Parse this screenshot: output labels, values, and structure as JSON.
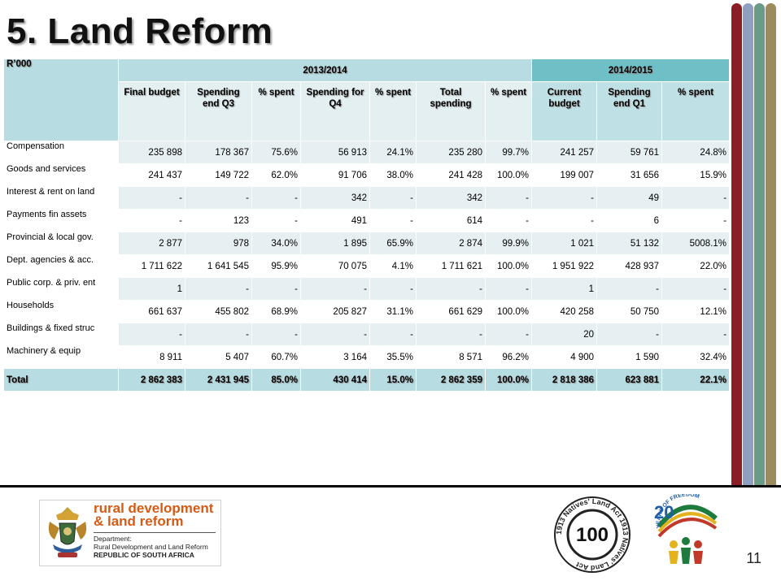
{
  "slide": {
    "title": "5. Land Reform",
    "page_number": "11",
    "accent_bars": [
      "#8b1e24",
      "#8f9fc1",
      "#6a9b86",
      "#9c8b5d"
    ]
  },
  "table": {
    "unit_label": "R’000",
    "year_2013": "2013/2014",
    "year_2014": "2014/2015",
    "columns": [
      "Final budget",
      "Spending end Q3",
      "% spent",
      "Spending for Q4",
      "% spent",
      "Total spending",
      "% spent",
      "Current budget",
      "Spending end Q1",
      "% spent"
    ],
    "rows": [
      {
        "label": "Compensation",
        "values": [
          "235 898",
          "178 367",
          "75.6%",
          "56 913",
          "24.1%",
          "235 280",
          "99.7%",
          "241 257",
          "59 761",
          "24.8%"
        ]
      },
      {
        "label": "Goods and services",
        "values": [
          "241 437",
          "149 722",
          "62.0%",
          "91 706",
          "38.0%",
          "241 428",
          "100.0%",
          "199 007",
          "31 656",
          "15.9%"
        ]
      },
      {
        "label": "Interest & rent on land",
        "values": [
          "-",
          "-",
          "-",
          "342",
          "-",
          "342",
          "-",
          "-",
          "49",
          "-"
        ]
      },
      {
        "label": "Payments fin assets",
        "values": [
          "-",
          "123",
          "-",
          "491",
          "-",
          "614",
          "-",
          "-",
          "6",
          "-"
        ]
      },
      {
        "label": "Provincial & local gov.",
        "values": [
          "2 877",
          "978",
          "34.0%",
          "1 895",
          "65.9%",
          "2 874",
          "99.9%",
          "1 021",
          "51 132",
          "5008.1%"
        ]
      },
      {
        "label": "Dept. agencies & acc.",
        "values": [
          "1 711 622",
          "1 641 545",
          "95.9%",
          "70 075",
          "4.1%",
          "1 711 621",
          "100.0%",
          "1 951 922",
          "428 937",
          "22.0%"
        ]
      },
      {
        "label": "Public corp. & priv. ent",
        "values": [
          "1",
          "-",
          "-",
          "-",
          "-",
          "-",
          "-",
          "1",
          "-",
          "-"
        ]
      },
      {
        "label": "Households",
        "values": [
          "661 637",
          "455 802",
          "68.9%",
          "205 827",
          "31.1%",
          "661 629",
          "100.0%",
          "420 258",
          "50 750",
          "12.1%"
        ]
      },
      {
        "label": "Buildings & fixed struc",
        "values": [
          "-",
          "-",
          "-",
          "-",
          "-",
          "-",
          "-",
          "20",
          "-",
          "-"
        ]
      },
      {
        "label": "Machinery & equip",
        "values": [
          "8 911",
          "5 407",
          "60.7%",
          "3 164",
          "35.5%",
          "8 571",
          "96.2%",
          "4 900",
          "1 590",
          "32.4%"
        ]
      }
    ],
    "total": {
      "label": "Total",
      "values": [
        "2 862 383",
        "2 431 945",
        "85.0%",
        "430 414",
        "15.0%",
        "2 862 359",
        "100.0%",
        "2 818 386",
        "623 881",
        "22.1%"
      ]
    }
  },
  "footer": {
    "logo_line1": "rural development",
    "logo_line2": "& land reform",
    "dept_label": "Department:",
    "dept_name": "Rural Development and Land Reform",
    "country": "REPUBLIC OF SOUTH AFRICA",
    "seal_number": "100",
    "seal_text": "1913 Natives' Land Act 1913 Natives' Land Act",
    "freedom_number": "20",
    "freedom_text": "YEARS OF FREEDOM"
  }
}
